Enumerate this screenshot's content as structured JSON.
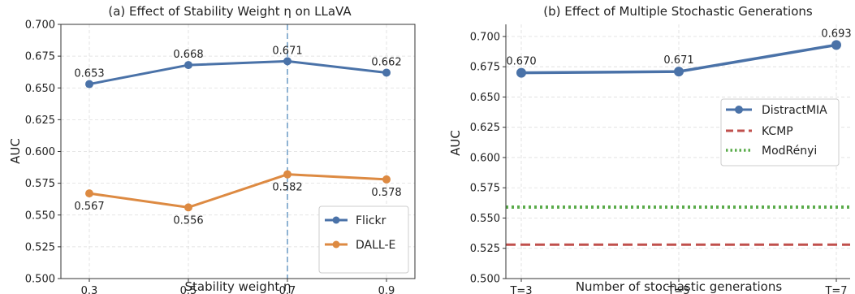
{
  "chart_data": [
    {
      "type": "line",
      "title": "(a) Effect of Stability Weight η on LLaVA",
      "xlabel": "Stability weight η",
      "ylabel": "AUC",
      "categories": [
        "0.3",
        "0.5",
        "0.7",
        "0.9"
      ],
      "ylim": [
        0.5,
        0.7
      ],
      "yticks": [
        "0.500",
        "0.525",
        "0.550",
        "0.575",
        "0.600",
        "0.625",
        "0.650",
        "0.675",
        "0.700"
      ],
      "grid": true,
      "legend": "bottom-right",
      "highlight_x": "0.7",
      "highlight_color": "#8fb3d3",
      "series": [
        {
          "name": "Flickr",
          "color": "#4a72a8",
          "values": [
            0.653,
            0.668,
            0.671,
            0.662
          ],
          "labels": [
            "0.653",
            "0.668",
            "0.671",
            "0.662"
          ]
        },
        {
          "name": "DALL-E",
          "color": "#dd8a42",
          "values": [
            0.567,
            0.556,
            0.582,
            0.578
          ],
          "labels": [
            "0.567",
            "0.556",
            "0.582",
            "0.578"
          ]
        }
      ]
    },
    {
      "type": "line",
      "title": "(b) Effect of Multiple Stochastic Generations",
      "xlabel": "Number of stochastic generations",
      "ylabel": "AUC",
      "categories": [
        "T=3",
        "T=5",
        "T=7"
      ],
      "ylim": [
        0.5,
        0.71
      ],
      "yticks": [
        "0.500",
        "0.525",
        "0.550",
        "0.575",
        "0.600",
        "0.625",
        "0.650",
        "0.675",
        "0.700"
      ],
      "grid": true,
      "legend": "right",
      "series": [
        {
          "name": "DistractMIA",
          "color": "#4a72a8",
          "values": [
            0.67,
            0.671,
            0.693
          ],
          "labels": [
            "0.670",
            "0.671",
            "0.693"
          ]
        }
      ],
      "baselines": [
        {
          "name": "KCMP",
          "color": "#c0504d",
          "value": 0.528,
          "style": "dashed"
        },
        {
          "name": "ModRényi",
          "color": "#5aab4a",
          "value": 0.559,
          "style": "dotted"
        }
      ]
    }
  ]
}
